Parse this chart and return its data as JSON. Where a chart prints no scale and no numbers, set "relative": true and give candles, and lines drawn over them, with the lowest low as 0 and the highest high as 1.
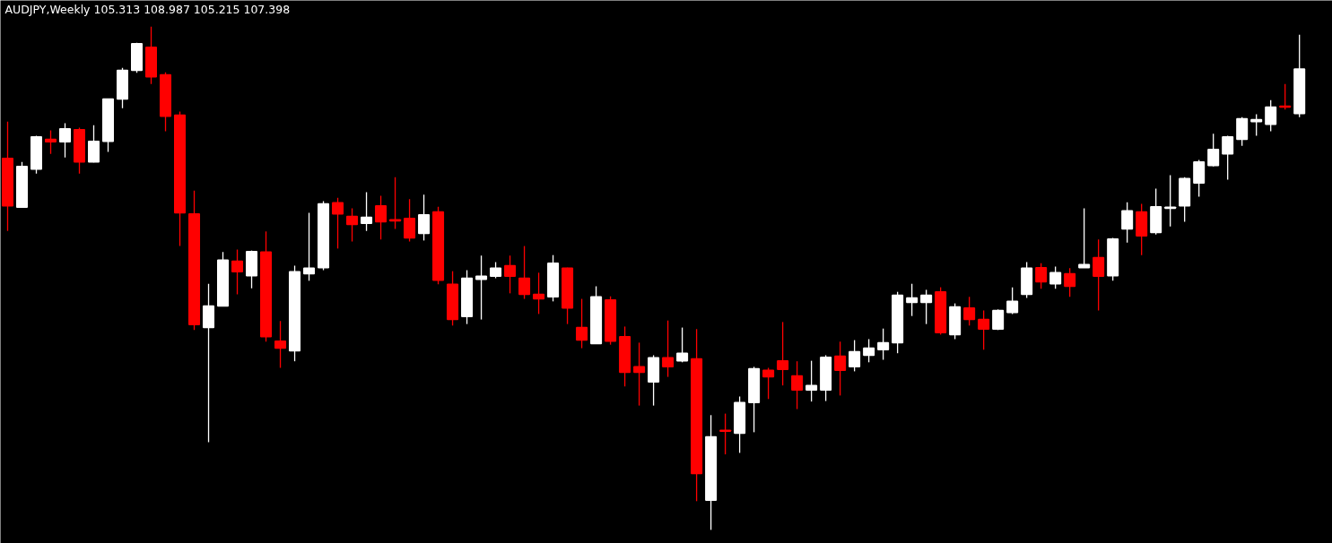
{
  "chart_data": {
    "type": "candlestick",
    "title": "AUDJPY,Weekly  105.313 108.987 105.215 107.398",
    "relative": true,
    "categories": [
      null,
      null,
      null,
      null,
      null,
      null,
      null,
      null,
      null,
      null,
      null,
      null,
      null,
      null,
      null,
      null,
      null,
      null,
      null,
      null,
      null,
      null,
      null,
      null,
      null,
      null,
      null,
      null,
      null,
      null,
      null,
      null,
      null,
      null,
      null,
      null,
      null,
      null,
      null,
      null,
      null,
      null,
      null,
      null,
      null,
      null,
      null,
      null,
      null,
      null,
      null,
      null,
      null,
      null,
      null,
      null,
      null,
      null,
      null,
      null,
      null,
      null,
      null,
      null,
      null,
      null,
      null,
      null,
      null,
      null,
      null,
      null,
      null,
      null,
      null,
      null,
      null,
      null,
      null,
      null,
      null,
      null,
      null,
      null,
      null,
      null,
      null,
      null,
      null,
      null,
      null
    ],
    "ohlc": [
      [
        0.738,
        0.811,
        0.594,
        0.644
      ],
      [
        0.641,
        0.731,
        0.641,
        0.722
      ],
      [
        0.717,
        0.783,
        0.708,
        0.781
      ],
      [
        0.776,
        0.794,
        0.747,
        0.771
      ],
      [
        0.771,
        0.808,
        0.74,
        0.797
      ],
      [
        0.795,
        0.799,
        0.708,
        0.731
      ],
      [
        0.731,
        0.804,
        0.73,
        0.772
      ],
      [
        0.772,
        0.856,
        0.751,
        0.856
      ],
      [
        0.856,
        0.918,
        0.838,
        0.913
      ],
      [
        0.913,
        0.968,
        0.908,
        0.966
      ],
      [
        0.959,
        1.0,
        0.886,
        0.9
      ],
      [
        0.904,
        0.909,
        0.792,
        0.822
      ],
      [
        0.824,
        0.831,
        0.564,
        0.63
      ],
      [
        0.628,
        0.674,
        0.397,
        0.408
      ],
      [
        0.402,
        0.489,
        0.174,
        0.445
      ],
      [
        0.445,
        0.552,
        0.445,
        0.536
      ],
      [
        0.534,
        0.557,
        0.468,
        0.513
      ],
      [
        0.505,
        0.555,
        0.48,
        0.553
      ],
      [
        0.552,
        0.593,
        0.374,
        0.384
      ],
      [
        0.375,
        0.415,
        0.322,
        0.361
      ],
      [
        0.356,
        0.525,
        0.335,
        0.513
      ],
      [
        0.509,
        0.63,
        0.495,
        0.52
      ],
      [
        0.521,
        0.653,
        0.516,
        0.648
      ],
      [
        0.65,
        0.66,
        0.559,
        0.628
      ],
      [
        0.623,
        0.639,
        0.573,
        0.607
      ],
      [
        0.609,
        0.671,
        0.594,
        0.621
      ],
      [
        0.644,
        0.664,
        0.577,
        0.612
      ],
      [
        0.616,
        0.701,
        0.598,
        0.614
      ],
      [
        0.619,
        0.657,
        0.573,
        0.58
      ],
      [
        0.589,
        0.666,
        0.575,
        0.626
      ],
      [
        0.632,
        0.642,
        0.488,
        0.496
      ],
      [
        0.488,
        0.514,
        0.406,
        0.418
      ],
      [
        0.424,
        0.516,
        0.409,
        0.5
      ],
      [
        0.498,
        0.545,
        0.418,
        0.504
      ],
      [
        0.504,
        0.532,
        0.5,
        0.52
      ],
      [
        0.525,
        0.545,
        0.47,
        0.504
      ],
      [
        0.5,
        0.564,
        0.459,
        0.468
      ],
      [
        0.468,
        0.511,
        0.429,
        0.459
      ],
      [
        0.463,
        0.546,
        0.454,
        0.53
      ],
      [
        0.52,
        0.521,
        0.409,
        0.441
      ],
      [
        0.402,
        0.459,
        0.361,
        0.377
      ],
      [
        0.37,
        0.484,
        0.37,
        0.463
      ],
      [
        0.457,
        0.464,
        0.368,
        0.375
      ],
      [
        0.384,
        0.404,
        0.285,
        0.313
      ],
      [
        0.324,
        0.372,
        0.247,
        0.313
      ],
      [
        0.294,
        0.347,
        0.247,
        0.342
      ],
      [
        0.342,
        0.416,
        0.304,
        0.324
      ],
      [
        0.336,
        0.402,
        0.333,
        0.351
      ],
      [
        0.34,
        0.399,
        0.057,
        0.112
      ],
      [
        0.059,
        0.228,
        0.0,
        0.185
      ],
      [
        0.198,
        0.231,
        0.15,
        0.196
      ],
      [
        0.192,
        0.265,
        0.153,
        0.253
      ],
      [
        0.253,
        0.324,
        0.194,
        0.32
      ],
      [
        0.317,
        0.322,
        0.26,
        0.304
      ],
      [
        0.336,
        0.413,
        0.287,
        0.319
      ],
      [
        0.306,
        0.335,
        0.24,
        0.278
      ],
      [
        0.278,
        0.336,
        0.255,
        0.287
      ],
      [
        0.278,
        0.347,
        0.256,
        0.343
      ],
      [
        0.345,
        0.374,
        0.267,
        0.317
      ],
      [
        0.324,
        0.377,
        0.315,
        0.354
      ],
      [
        0.347,
        0.379,
        0.333,
        0.361
      ],
      [
        0.358,
        0.4,
        0.338,
        0.372
      ],
      [
        0.372,
        0.473,
        0.351,
        0.466
      ],
      [
        0.452,
        0.489,
        0.425,
        0.461
      ],
      [
        0.452,
        0.477,
        0.409,
        0.466
      ],
      [
        0.473,
        0.482,
        0.388,
        0.392
      ],
      [
        0.388,
        0.45,
        0.379,
        0.443
      ],
      [
        0.441,
        0.463,
        0.406,
        0.418
      ],
      [
        0.418,
        0.436,
        0.358,
        0.399
      ],
      [
        0.399,
        0.438,
        0.397,
        0.436
      ],
      [
        0.432,
        0.482,
        0.429,
        0.454
      ],
      [
        0.468,
        0.532,
        0.461,
        0.52
      ],
      [
        0.521,
        0.53,
        0.479,
        0.493
      ],
      [
        0.489,
        0.523,
        0.479,
        0.511
      ],
      [
        0.509,
        0.52,
        0.463,
        0.484
      ],
      [
        0.521,
        0.639,
        0.521,
        0.527
      ],
      [
        0.541,
        0.577,
        0.436,
        0.504
      ],
      [
        0.505,
        0.58,
        0.495,
        0.578
      ],
      [
        0.598,
        0.651,
        0.571,
        0.634
      ],
      [
        0.632,
        0.648,
        0.546,
        0.584
      ],
      [
        0.591,
        0.678,
        0.587,
        0.642
      ],
      [
        0.639,
        0.705,
        0.603,
        0.641
      ],
      [
        0.644,
        0.701,
        0.612,
        0.698
      ],
      [
        0.689,
        0.735,
        0.662,
        0.731
      ],
      [
        0.724,
        0.787,
        0.722,
        0.756
      ],
      [
        0.747,
        0.783,
        0.696,
        0.781
      ],
      [
        0.776,
        0.82,
        0.763,
        0.817
      ],
      [
        0.811,
        0.826,
        0.783,
        0.815
      ],
      [
        0.806,
        0.854,
        0.792,
        0.84
      ],
      [
        0.842,
        0.886,
        0.835,
        0.84
      ],
      [
        0.827,
        0.984,
        0.82,
        0.916
      ]
    ],
    "colors": [
      "#ff0000",
      "#ffffff",
      "#ffffff",
      "#ff0000",
      "#ffffff",
      "#ff0000",
      "#ffffff",
      "#ffffff",
      "#ffffff",
      "#ffffff",
      "#ff0000",
      "#ff0000",
      "#ff0000",
      "#ff0000",
      "#ffffff",
      "#ffffff",
      "#ff0000",
      "#ffffff",
      "#ff0000",
      "#ff0000",
      "#ffffff",
      "#ffffff",
      "#ffffff",
      "#ff0000",
      "#ff0000",
      "#ffffff",
      "#ff0000",
      "#ff0000",
      "#ff0000",
      "#ffffff",
      "#ff0000",
      "#ff0000",
      "#ffffff",
      "#ffffff",
      "#ffffff",
      "#ff0000",
      "#ff0000",
      "#ff0000",
      "#ffffff",
      "#ff0000",
      "#ff0000",
      "#ffffff",
      "#ff0000",
      "#ff0000",
      "#ff0000",
      "#ffffff",
      "#ff0000",
      "#ffffff",
      "#ff0000",
      "#ffffff",
      "#ff0000",
      "#ffffff",
      "#ffffff",
      "#ff0000",
      "#ff0000",
      "#ff0000",
      "#ffffff",
      "#ffffff",
      "#ff0000",
      "#ffffff",
      "#ffffff",
      "#ffffff",
      "#ffffff",
      "#ffffff",
      "#ffffff",
      "#ff0000",
      "#ffffff",
      "#ff0000",
      "#ff0000",
      "#ffffff",
      "#ffffff",
      "#ffffff",
      "#ff0000",
      "#ffffff",
      "#ff0000",
      "#ffffff",
      "#ff0000",
      "#ffffff",
      "#ffffff",
      "#ff0000",
      "#ffffff",
      "#ffffff",
      "#ffffff",
      "#ffffff",
      "#ffffff",
      "#ffffff",
      "#ffffff",
      "#ffffff",
      "#ffffff",
      "#ff0000",
      "#ffffff"
    ]
  }
}
